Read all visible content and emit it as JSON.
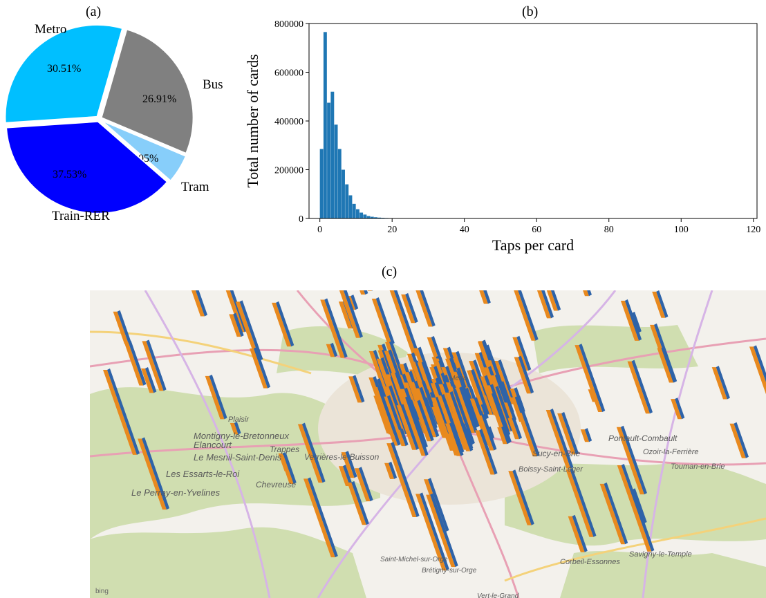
{
  "panels": {
    "a": "(a)",
    "b": "(b)",
    "c": "(c)"
  },
  "chart_data": [
    {
      "type": "pie",
      "labels": [
        "Metro",
        "Bus",
        "Tram",
        "Train-RER"
      ],
      "values": [
        30.51,
        26.91,
        5.05,
        37.53
      ],
      "pct_labels": [
        "30.51%",
        "26.91%",
        "5.05%",
        "37.53%"
      ],
      "colors": [
        "#00bfff",
        "#808080",
        "#87cefa",
        "#0000ff"
      ]
    },
    {
      "type": "bar",
      "xlabel": "Taps per card",
      "ylabel": "Total number of cards",
      "xlim": [
        -3,
        121
      ],
      "ylim": [
        0,
        800000
      ],
      "xticks": [
        0,
        20,
        40,
        60,
        80,
        100,
        120
      ],
      "yticks": [
        0,
        200000,
        400000,
        600000,
        800000
      ],
      "bin_width": 1,
      "bin_starts": [
        0,
        1,
        2,
        3,
        4,
        5,
        6,
        7,
        8,
        9,
        10,
        11,
        12,
        13,
        14,
        15,
        16,
        17,
        18,
        19,
        20,
        21,
        22,
        23,
        24,
        25
      ],
      "values": [
        285000,
        765000,
        475000,
        520000,
        385000,
        285000,
        200000,
        140000,
        95000,
        60000,
        38000,
        24000,
        16000,
        10000,
        7000,
        5000,
        3500,
        2500,
        1800,
        1200,
        900,
        700,
        500,
        400,
        300,
        200
      ],
      "color": "#1f77b4"
    }
  ],
  "map": {
    "places": [
      "Metro",
      "Montigny-le-Bretonneux",
      "Elancourt",
      "Trappes",
      "Le Mesnil-Saint-Denis",
      "Les Essarts-le-Roi",
      "Le Perray-en-Yvelines",
      "Chevreuse",
      "Verrières-le-Buisson",
      "Pontault-Combault",
      "Ozoir-la-Ferrière",
      "Touman-en-Brie",
      "Savigny-le-Temple",
      "Corbeil-Essonnes",
      "Brétigny-sur-Orge",
      "Saint-Michel-sur-Orge",
      "Vert-le-Grand",
      "Sucy-en-Brie",
      "Boissy-Saint-Léger",
      "Plaisir"
    ],
    "attribution": "bing"
  }
}
